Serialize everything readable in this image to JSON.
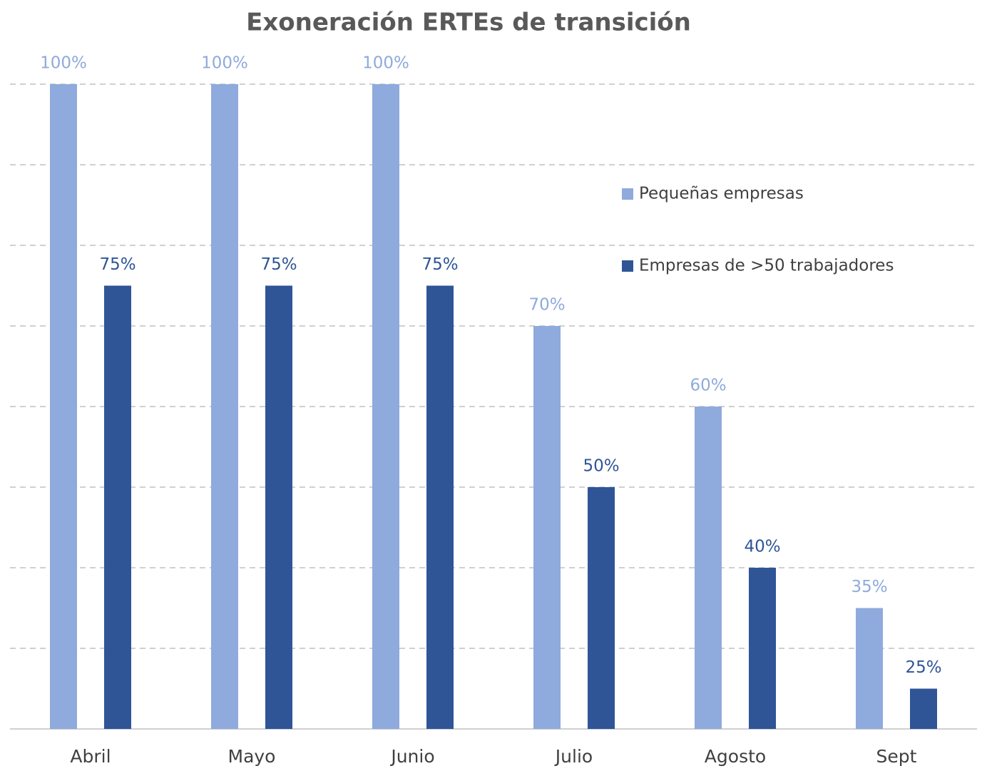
{
  "chart_data": {
    "type": "bar",
    "title": "Exoneración ERTEs de transición",
    "categories": [
      "Abril",
      "Mayo",
      "Junio",
      "Julio",
      "Agosto",
      "Sept"
    ],
    "series": [
      {
        "name": "Pequeñas empresas",
        "color": "#8faadc",
        "values": [
          100,
          100,
          100,
          70,
          60,
          35
        ],
        "value_labels": [
          "100%",
          "100%",
          "100%",
          "70%",
          "60%",
          "35%"
        ]
      },
      {
        "name": "Empresas de >50 trabajadores",
        "color": "#2f5597",
        "values": [
          75,
          75,
          75,
          50,
          40,
          25
        ],
        "value_labels": [
          "75%",
          "75%",
          "75%",
          "50%",
          "40%",
          "25%"
        ]
      }
    ],
    "ylim": [
      20,
      100
    ],
    "yticks": [
      20,
      30,
      40,
      50,
      60,
      70,
      80,
      90,
      100
    ],
    "grid": true,
    "legend": "right"
  }
}
